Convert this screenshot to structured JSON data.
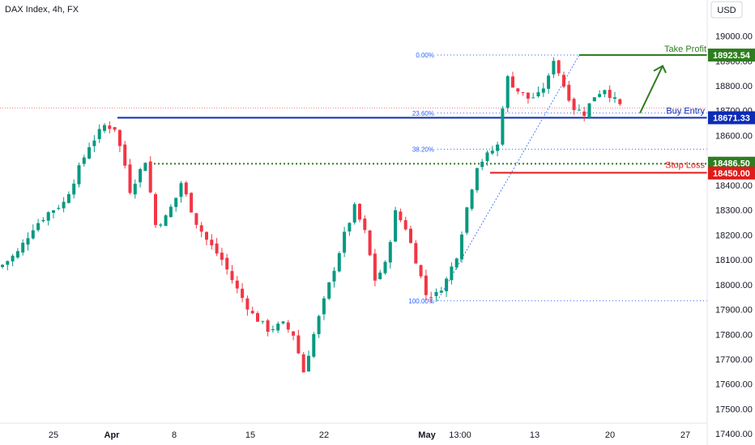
{
  "header": {
    "title": "DAX Index, 4h, FX",
    "currency": "USD"
  },
  "colors": {
    "up": "#089981",
    "down": "#f23645",
    "fib": "#2962ff",
    "take_profit": "#2e7d1f",
    "buy_entry": "#0d2bb5",
    "stop_loss": "#e01b1b",
    "prev_close": "#f23645"
  },
  "chart_data": {
    "type": "candlestick",
    "x_ticks": [
      "25",
      "Apr",
      "8",
      "15",
      "22",
      "May",
      "13:00",
      "13",
      "20",
      "27"
    ],
    "y_ticks": [
      19000,
      18900,
      18800,
      18700,
      18600,
      18500,
      18400,
      18300,
      18200,
      18100,
      18000,
      17900,
      17800,
      17700,
      17600,
      17500,
      17400
    ],
    "y_tick_labels": [
      "19000.00",
      "18900.00",
      "18800.00",
      "18700.00",
      "18600.00",
      "18500.00",
      "18400.00",
      "18300.00",
      "18200.00",
      "18100.00",
      "18000.00",
      "17900.00",
      "17800.00",
      "17700.00",
      "17600.00",
      "17500.00",
      "17400.00"
    ],
    "ylim": [
      17355,
      19145
    ],
    "price_points": [
      {
        "t": 0,
        "p": 18080
      },
      {
        "t": 3,
        "p": 18130
      },
      {
        "t": 6,
        "p": 18230
      },
      {
        "t": 9,
        "p": 18290
      },
      {
        "t": 12,
        "p": 18330
      },
      {
        "t": 14,
        "p": 18420
      },
      {
        "t": 17,
        "p": 18560
      },
      {
        "t": 20,
        "p": 18640
      },
      {
        "t": 22,
        "p": 18630
      },
      {
        "t": 24,
        "p": 18480
      },
      {
        "t": 25,
        "p": 18380
      },
      {
        "t": 27,
        "p": 18460
      },
      {
        "t": 28,
        "p": 18500
      },
      {
        "t": 30,
        "p": 18240
      },
      {
        "t": 32,
        "p": 18270
      },
      {
        "t": 34,
        "p": 18350
      },
      {
        "t": 35,
        "p": 18410
      },
      {
        "t": 38,
        "p": 18250
      },
      {
        "t": 40,
        "p": 18180
      },
      {
        "t": 43,
        "p": 18100
      },
      {
        "t": 46,
        "p": 17980
      },
      {
        "t": 49,
        "p": 17880
      },
      {
        "t": 52,
        "p": 17820
      },
      {
        "t": 55,
        "p": 17840
      },
      {
        "t": 57,
        "p": 17800
      },
      {
        "t": 59,
        "p": 17650
      },
      {
        "t": 61,
        "p": 17800
      },
      {
        "t": 64,
        "p": 18000
      },
      {
        "t": 67,
        "p": 18200
      },
      {
        "t": 69,
        "p": 18310
      },
      {
        "t": 71,
        "p": 18210
      },
      {
        "t": 73,
        "p": 18020
      },
      {
        "t": 75,
        "p": 18080
      },
      {
        "t": 77,
        "p": 18290
      },
      {
        "t": 79,
        "p": 18230
      },
      {
        "t": 81,
        "p": 18100
      },
      {
        "t": 83,
        "p": 17960
      },
      {
        "t": 85,
        "p": 17960
      },
      {
        "t": 87,
        "p": 18020
      },
      {
        "t": 89,
        "p": 18120
      },
      {
        "t": 91,
        "p": 18310
      },
      {
        "t": 93,
        "p": 18480
      },
      {
        "t": 95,
        "p": 18520
      },
      {
        "t": 97,
        "p": 18560
      },
      {
        "t": 98,
        "p": 18720
      },
      {
        "t": 99,
        "p": 18830
      },
      {
        "t": 101,
        "p": 18780
      },
      {
        "t": 103,
        "p": 18750
      },
      {
        "t": 105,
        "p": 18760
      },
      {
        "t": 107,
        "p": 18830
      },
      {
        "t": 108,
        "p": 18910
      },
      {
        "t": 110,
        "p": 18800
      },
      {
        "t": 112,
        "p": 18710
      },
      {
        "t": 114,
        "p": 18690
      },
      {
        "t": 116,
        "p": 18760
      },
      {
        "t": 118,
        "p": 18790
      },
      {
        "t": 120,
        "p": 18740
      },
      {
        "t": 121,
        "p": 18720
      }
    ],
    "levels": {
      "take_profit": {
        "label": "Take Profit",
        "value": 18923.54,
        "text": "18923.54"
      },
      "buy_entry": {
        "label": "Buy Entry",
        "value": 18671.33,
        "text": "18671.33"
      },
      "stop_loss": {
        "label": "Stop Loss",
        "value": 18450.0,
        "text": "18450.00"
      },
      "support_dotted": {
        "value": 18486.5,
        "text": "18486.50"
      },
      "prev_close": {
        "value": 18710
      }
    },
    "fibonacci": [
      {
        "label": "0.00%",
        "value": 18923.54
      },
      {
        "label": "23.60%",
        "value": 18690
      },
      {
        "label": "38.20%",
        "value": 18545
      },
      {
        "label": "100.00%",
        "value": 17935
      }
    ]
  }
}
